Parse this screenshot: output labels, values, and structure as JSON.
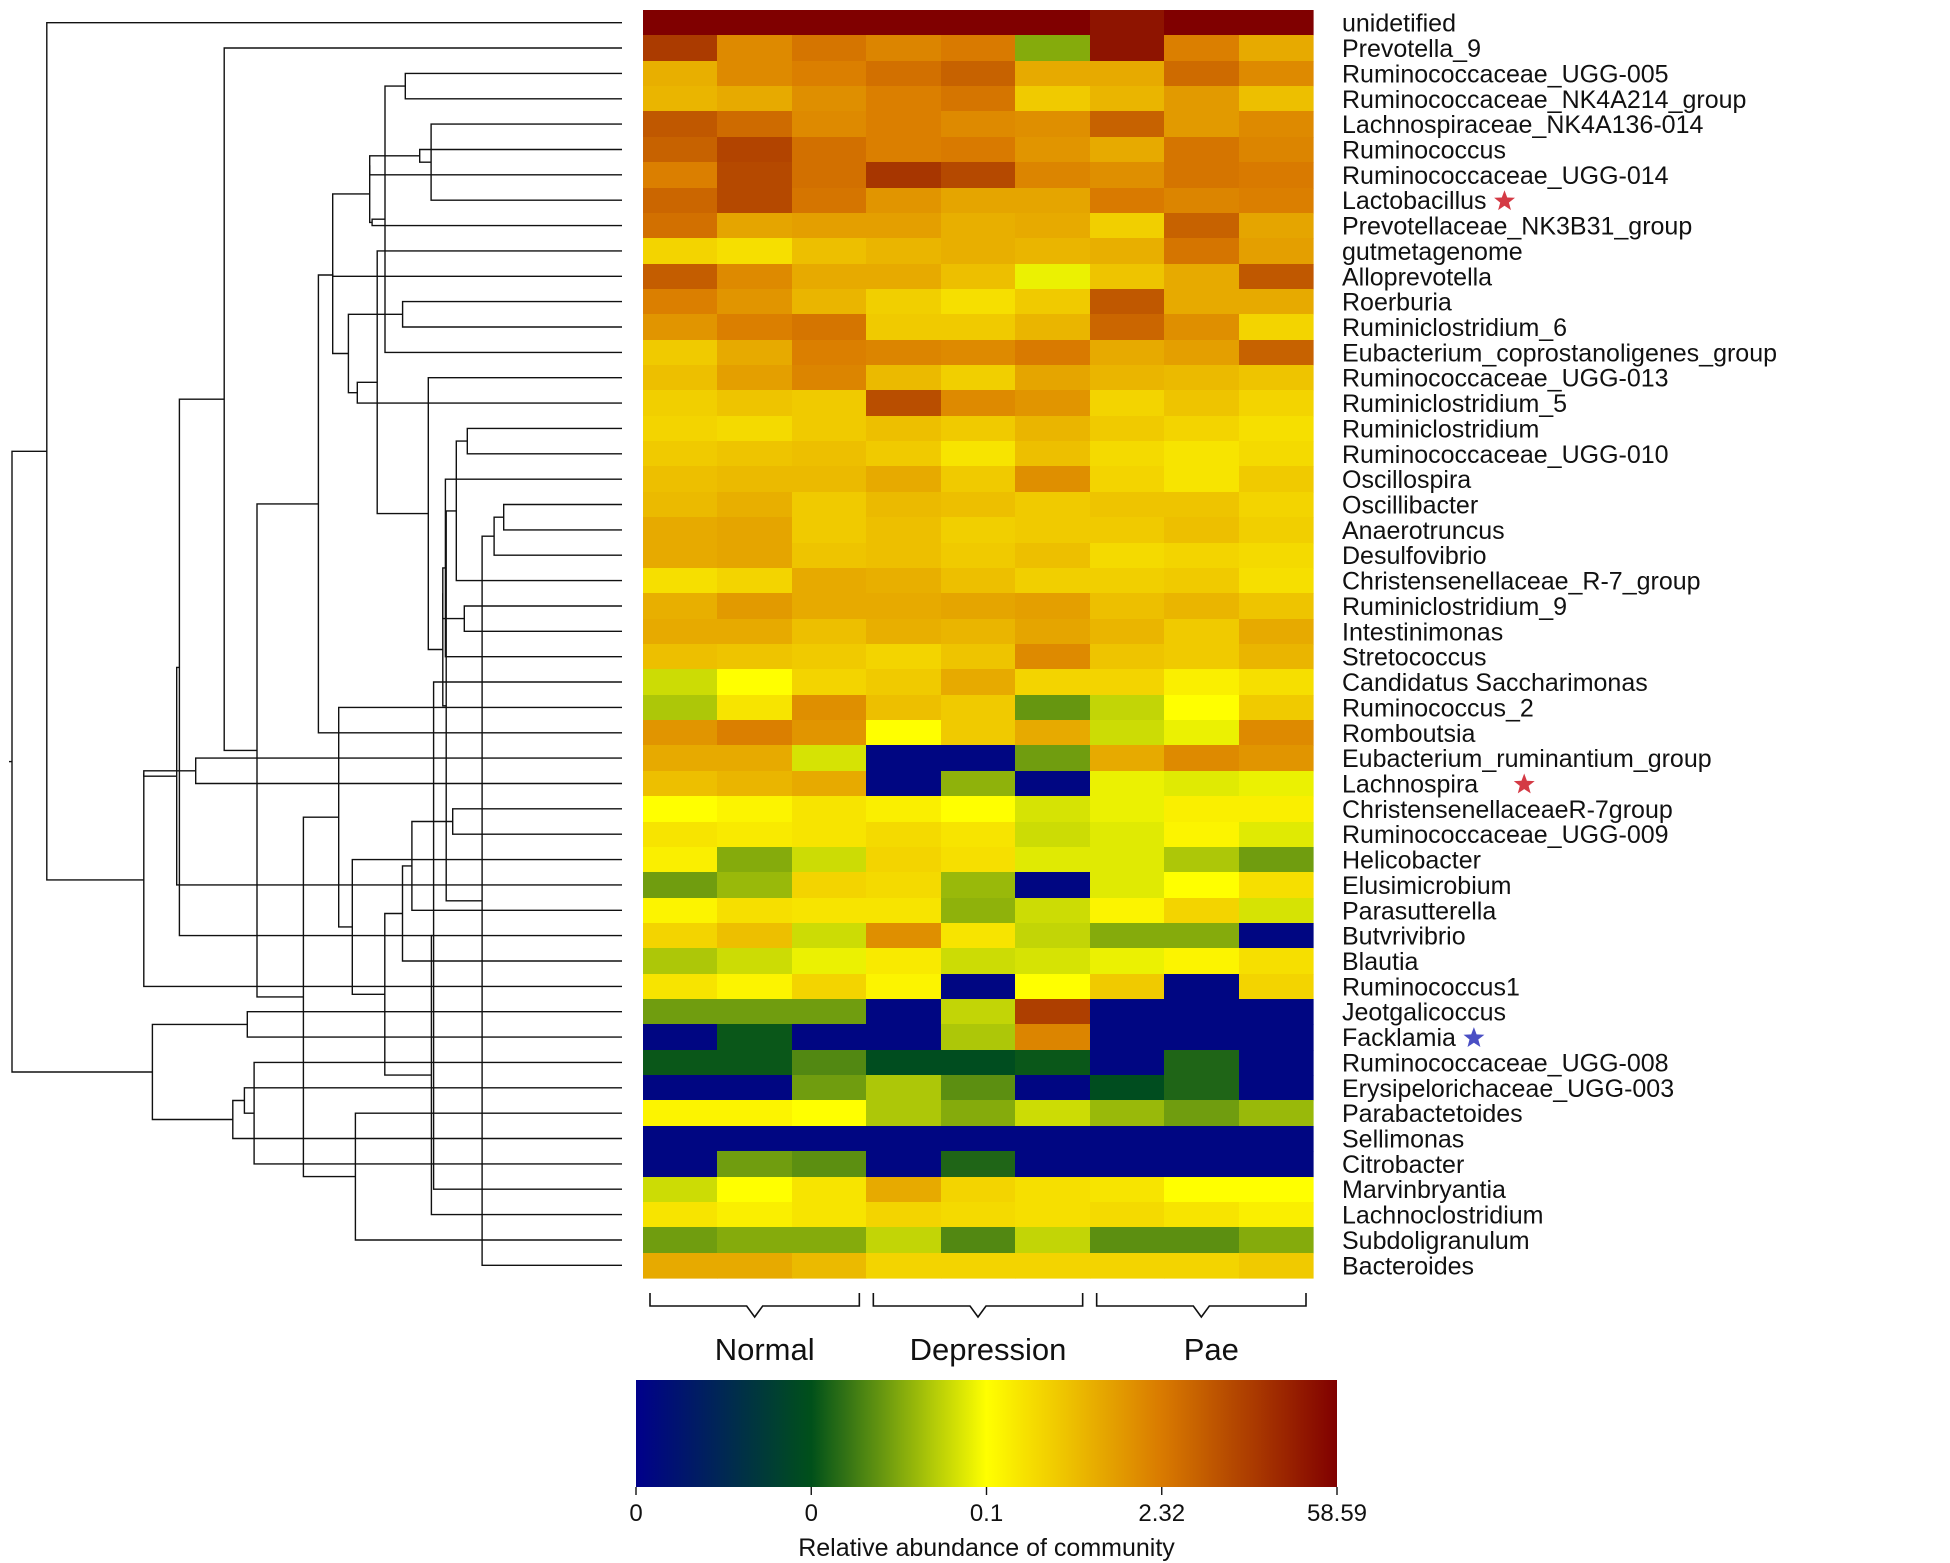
{
  "chart_data": {
    "type": "heatmap",
    "title": "",
    "rows": [
      {
        "label": "unidetified",
        "marker": "",
        "values": [
          1.0,
          1.0,
          1.0,
          1.0,
          1.0,
          1.0,
          0.96,
          1.0,
          1.0
        ]
      },
      {
        "label": "Prevotella_9",
        "marker": "",
        "values": [
          0.88,
          0.72,
          0.76,
          0.73,
          0.75,
          0.38,
          0.96,
          0.74,
          0.66
        ]
      },
      {
        "label": "Ruminococcaceae_UGG-005",
        "marker": "",
        "values": [
          0.65,
          0.72,
          0.74,
          0.77,
          0.8,
          0.66,
          0.66,
          0.78,
          0.72
        ]
      },
      {
        "label": "Ruminococcaceae_NK4A214_group",
        "marker": "",
        "values": [
          0.64,
          0.66,
          0.71,
          0.74,
          0.76,
          0.6,
          0.64,
          0.69,
          0.62
        ]
      },
      {
        "label": "Lachnospiraceae_NK4A136-014",
        "marker": "",
        "values": [
          0.82,
          0.78,
          0.72,
          0.74,
          0.72,
          0.71,
          0.8,
          0.69,
          0.72
        ]
      },
      {
        "label": "Ruminococcus",
        "marker": "",
        "values": [
          0.8,
          0.86,
          0.77,
          0.74,
          0.75,
          0.7,
          0.66,
          0.76,
          0.73
        ]
      },
      {
        "label": "Ruminococcaceae_UGG-014",
        "marker": "",
        "values": [
          0.74,
          0.85,
          0.77,
          0.89,
          0.85,
          0.73,
          0.71,
          0.76,
          0.75
        ]
      },
      {
        "label": "Lactobacillus",
        "marker": "red",
        "values": [
          0.79,
          0.85,
          0.76,
          0.7,
          0.67,
          0.67,
          0.75,
          0.73,
          0.74
        ]
      },
      {
        "label": "Prevotellaceae_NK3B31_group",
        "marker": "",
        "values": [
          0.77,
          0.67,
          0.68,
          0.68,
          0.65,
          0.66,
          0.59,
          0.8,
          0.67
        ]
      },
      {
        "label": "gutmetagenome",
        "marker": "",
        "values": [
          0.58,
          0.56,
          0.62,
          0.64,
          0.65,
          0.64,
          0.65,
          0.76,
          0.68
        ]
      },
      {
        "label": "Alloprevotella",
        "marker": "",
        "values": [
          0.81,
          0.72,
          0.66,
          0.66,
          0.62,
          0.48,
          0.61,
          0.66,
          0.82
        ]
      },
      {
        "label": "Roerburia",
        "marker": "",
        "values": [
          0.74,
          0.7,
          0.64,
          0.59,
          0.56,
          0.6,
          0.82,
          0.66,
          0.66
        ]
      },
      {
        "label": "Ruminiclostridium_6",
        "marker": "",
        "values": [
          0.7,
          0.74,
          0.76,
          0.6,
          0.6,
          0.64,
          0.79,
          0.71,
          0.58
        ]
      },
      {
        "label": "Eubacterium_coprostanoligenes_group",
        "marker": "",
        "values": [
          0.6,
          0.66,
          0.74,
          0.73,
          0.72,
          0.75,
          0.66,
          0.68,
          0.8
        ]
      },
      {
        "label": "Ruminococcaceae_UGG-013",
        "marker": "",
        "values": [
          0.62,
          0.68,
          0.73,
          0.63,
          0.59,
          0.67,
          0.64,
          0.63,
          0.61
        ]
      },
      {
        "label": "Ruminiclostridium_5",
        "marker": "",
        "values": [
          0.59,
          0.61,
          0.6,
          0.84,
          0.72,
          0.7,
          0.58,
          0.61,
          0.58
        ]
      },
      {
        "label": "Ruminiclostridium",
        "marker": "",
        "values": [
          0.58,
          0.57,
          0.6,
          0.62,
          0.6,
          0.64,
          0.6,
          0.58,
          0.56
        ]
      },
      {
        "label": "Ruminococcaceae_UGG-010",
        "marker": "",
        "values": [
          0.6,
          0.61,
          0.62,
          0.6,
          0.55,
          0.62,
          0.57,
          0.55,
          0.57
        ]
      },
      {
        "label": "Oscillospira",
        "marker": "",
        "values": [
          0.62,
          0.63,
          0.63,
          0.66,
          0.6,
          0.71,
          0.58,
          0.55,
          0.6
        ]
      },
      {
        "label": "Oscillibacter",
        "marker": "",
        "values": [
          0.63,
          0.65,
          0.6,
          0.63,
          0.62,
          0.6,
          0.61,
          0.61,
          0.58
        ]
      },
      {
        "label": "Anaerotruncus",
        "marker": "",
        "values": [
          0.66,
          0.67,
          0.6,
          0.62,
          0.59,
          0.6,
          0.6,
          0.62,
          0.59
        ]
      },
      {
        "label": "Desulfovibrio",
        "marker": "",
        "values": [
          0.66,
          0.67,
          0.61,
          0.62,
          0.6,
          0.62,
          0.57,
          0.58,
          0.57
        ]
      },
      {
        "label": "Christensenellaceae_R-7_group",
        "marker": "",
        "values": [
          0.56,
          0.58,
          0.66,
          0.65,
          0.62,
          0.59,
          0.59,
          0.6,
          0.56
        ]
      },
      {
        "label": "Ruminiclostridium_9",
        "marker": "",
        "values": [
          0.65,
          0.69,
          0.66,
          0.66,
          0.67,
          0.68,
          0.62,
          0.64,
          0.61
        ]
      },
      {
        "label": "Intestinimonas",
        "marker": "",
        "values": [
          0.66,
          0.66,
          0.62,
          0.65,
          0.64,
          0.67,
          0.64,
          0.6,
          0.66
        ]
      },
      {
        "label": "Stretococcus",
        "marker": "",
        "values": [
          0.62,
          0.61,
          0.6,
          0.58,
          0.61,
          0.72,
          0.61,
          0.6,
          0.64
        ]
      },
      {
        "label": "Candidatus Saccharimonas",
        "marker": "",
        "values": [
          0.45,
          0.5,
          0.58,
          0.6,
          0.66,
          0.58,
          0.58,
          0.53,
          0.56
        ]
      },
      {
        "label": "Ruminococcus_2",
        "marker": "",
        "values": [
          0.42,
          0.55,
          0.71,
          0.62,
          0.6,
          0.35,
          0.44,
          0.5,
          0.6
        ]
      },
      {
        "label": "Romboutsia",
        "marker": "",
        "values": [
          0.7,
          0.74,
          0.7,
          0.5,
          0.6,
          0.66,
          0.45,
          0.48,
          0.72
        ]
      },
      {
        "label": "Eubacterium_ruminantium_group",
        "marker": "",
        "values": [
          0.66,
          0.66,
          0.46,
          0.02,
          0.02,
          0.36,
          0.66,
          0.72,
          0.7
        ]
      },
      {
        "label": "Lachnospira",
        "marker": "red",
        "values": [
          0.62,
          0.64,
          0.66,
          0.02,
          0.39,
          0.02,
          0.48,
          0.47,
          0.48
        ]
      },
      {
        "label": "ChristensenellaceaeR-7group",
        "marker": "",
        "values": [
          0.5,
          0.52,
          0.55,
          0.53,
          0.5,
          0.46,
          0.48,
          0.53,
          0.53
        ]
      },
      {
        "label": "Ruminococcaceae_UGG-009",
        "marker": "",
        "values": [
          0.55,
          0.54,
          0.55,
          0.57,
          0.55,
          0.45,
          0.47,
          0.52,
          0.47
        ]
      },
      {
        "label": "Helicobacter",
        "marker": "",
        "values": [
          0.53,
          0.38,
          0.45,
          0.58,
          0.56,
          0.47,
          0.47,
          0.42,
          0.36
        ]
      },
      {
        "label": "Elusimicrobium",
        "marker": "",
        "values": [
          0.36,
          0.4,
          0.58,
          0.57,
          0.4,
          0.02,
          0.47,
          0.5,
          0.56
        ]
      },
      {
        "label": "Parasutterella",
        "marker": "",
        "values": [
          0.52,
          0.56,
          0.55,
          0.55,
          0.39,
          0.45,
          0.52,
          0.58,
          0.46
        ]
      },
      {
        "label": "Butvrivibrio",
        "marker": "",
        "values": [
          0.58,
          0.62,
          0.45,
          0.71,
          0.55,
          0.44,
          0.38,
          0.38,
          0.02
        ]
      },
      {
        "label": "Blautia",
        "marker": "",
        "values": [
          0.42,
          0.45,
          0.48,
          0.54,
          0.45,
          0.46,
          0.48,
          0.52,
          0.56
        ]
      },
      {
        "label": "Ruminococcus1",
        "marker": "",
        "values": [
          0.55,
          0.52,
          0.58,
          0.52,
          0.02,
          0.5,
          0.6,
          0.02,
          0.58
        ]
      },
      {
        "label": "Jeotgalicoccus",
        "marker": "",
        "values": [
          0.36,
          0.36,
          0.36,
          0.02,
          0.44,
          0.87,
          0.02,
          0.02,
          0.02
        ]
      },
      {
        "label": "Facklamia",
        "marker": "blue",
        "values": [
          0.02,
          0.26,
          0.02,
          0.02,
          0.42,
          0.73,
          0.02,
          0.02,
          0.02
        ]
      },
      {
        "label": "Ruminococcaceae_UGG-008",
        "marker": "",
        "values": [
          0.26,
          0.26,
          0.33,
          0.24,
          0.24,
          0.26,
          0.02,
          0.28,
          0.02
        ]
      },
      {
        "label": "Erysipelorichaceae_UGG-003",
        "marker": "",
        "values": [
          0.02,
          0.02,
          0.36,
          0.42,
          0.34,
          0.02,
          0.24,
          0.28,
          0.02
        ]
      },
      {
        "label": "Parabactetoides",
        "marker": "",
        "values": [
          0.52,
          0.52,
          0.5,
          0.42,
          0.38,
          0.45,
          0.4,
          0.36,
          0.4
        ]
      },
      {
        "label": "Sellimonas",
        "marker": "",
        "values": [
          0.02,
          0.02,
          0.02,
          0.02,
          0.02,
          0.02,
          0.02,
          0.02,
          0.02
        ]
      },
      {
        "label": "Citrobacter",
        "marker": "",
        "values": [
          0.02,
          0.36,
          0.34,
          0.02,
          0.28,
          0.02,
          0.02,
          0.02,
          0.02
        ]
      },
      {
        "label": "Marvinbryantia",
        "marker": "",
        "values": [
          0.45,
          0.5,
          0.55,
          0.66,
          0.58,
          0.56,
          0.55,
          0.5,
          0.5
        ]
      },
      {
        "label": "Lachnoclostridium",
        "marker": "",
        "values": [
          0.55,
          0.53,
          0.55,
          0.58,
          0.57,
          0.56,
          0.57,
          0.55,
          0.53
        ]
      },
      {
        "label": "Subdoligranulum",
        "marker": "",
        "values": [
          0.36,
          0.38,
          0.38,
          0.44,
          0.33,
          0.44,
          0.34,
          0.34,
          0.38
        ]
      },
      {
        "label": "Bacteroides",
        "marker": "",
        "values": [
          0.66,
          0.66,
          0.63,
          0.58,
          0.58,
          0.58,
          0.58,
          0.58,
          0.6
        ]
      }
    ],
    "groups": [
      {
        "name": "Normal",
        "columns": 3
      },
      {
        "name": "Depression",
        "columns": 3
      },
      {
        "name": "Pae",
        "columns": 3
      }
    ],
    "colorscale": {
      "title": "Relative abundance of community",
      "tick_labels": [
        "0",
        "0",
        "0.1",
        "2.32",
        "58.59"
      ],
      "tick_positions": [
        0.0,
        0.25,
        0.5,
        0.75,
        1.0
      ],
      "stops": [
        "#00008b",
        "#00501a",
        "#ffff00",
        "#d97a00",
        "#800000"
      ]
    }
  }
}
